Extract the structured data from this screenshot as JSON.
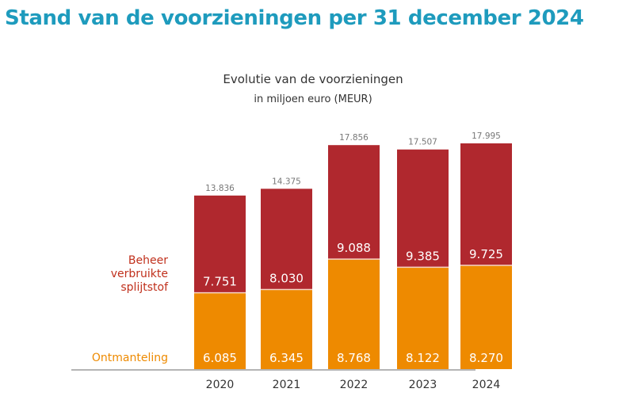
{
  "page": {
    "title": "Stand van de voorzieningen per 31 december 2024",
    "title_color": "#1e9bbd"
  },
  "chart_data": {
    "type": "bar",
    "stacked": true,
    "title": "Evolutie van de voorzieningen",
    "subtitle": "in miljoen euro (MEUR)",
    "xlabel": "",
    "ylabel": "",
    "categories": [
      "2020",
      "2021",
      "2022",
      "2023",
      "2024"
    ],
    "series": [
      {
        "name": "Ontmanteling",
        "color": "#ee8a00",
        "values": [
          6085,
          6345,
          8768,
          8122,
          8270
        ],
        "labels": [
          "6.085",
          "6.345",
          "8.768",
          "8.122",
          "8.270"
        ]
      },
      {
        "name": "Beheer verbruikte splijtstof",
        "legend_lines": [
          "Beheer",
          "verbruikte",
          "splijtstof"
        ],
        "color": "#b0282e",
        "values": [
          7751,
          8030,
          9088,
          9385,
          9725
        ],
        "labels": [
          "7.751",
          "8.030",
          "9.088",
          "9.385",
          "9.725"
        ]
      }
    ],
    "totals": [
      13836,
      14375,
      17856,
      17507,
      17995
    ],
    "total_labels": [
      "13.836",
      "14.375",
      "17.856",
      "17.507",
      "17.995"
    ],
    "ylim": [
      0,
      20000
    ],
    "grid": false,
    "legend_position": "left",
    "legend_colors": {
      "Ontmanteling": "#ee8a00",
      "Beheer verbruikte splijtstof": "#c0301c"
    }
  }
}
